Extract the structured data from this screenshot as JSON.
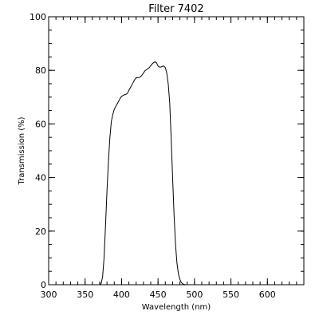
{
  "chart_data": {
    "type": "line",
    "title": "Filter 7402",
    "xlabel": "Wavelength (nm)",
    "ylabel": "Transmission (%)",
    "xlim": [
      300,
      650
    ],
    "ylim": [
      0,
      100
    ],
    "xticks": [
      300,
      350,
      400,
      450,
      500,
      550,
      600
    ],
    "yticks": [
      0,
      20,
      40,
      60,
      80,
      100
    ],
    "x_minor_step": 10,
    "y_minor_step": 5,
    "grid": false,
    "line_color": "#000000",
    "series": [
      {
        "x": [
          370,
          372,
          374,
          376,
          378,
          380,
          382,
          384,
          385,
          386,
          388,
          390,
          392,
          394,
          396,
          398,
          400,
          402,
          404,
          406,
          408,
          410,
          412,
          414,
          416,
          418,
          420,
          422,
          424,
          426,
          428,
          430,
          432,
          434,
          436,
          438,
          440,
          442,
          444,
          446,
          448,
          450,
          452,
          454,
          456,
          458,
          460,
          462,
          464,
          466,
          468,
          470,
          472,
          474,
          476,
          478,
          480,
          482,
          484,
          486,
          488,
          490
        ],
        "y": [
          0,
          0.5,
          3,
          10,
          22,
          35,
          46,
          55,
          58,
          61,
          63.5,
          65.5,
          66.5,
          67.5,
          68.5,
          69.5,
          70.3,
          70.6,
          70.9,
          71.0,
          71.4,
          72.5,
          73.5,
          74.5,
          75.5,
          76.5,
          77.2,
          77.3,
          77.3,
          77.6,
          78.2,
          79.0,
          79.8,
          80.2,
          80.6,
          81.0,
          81.7,
          82.4,
          82.9,
          83.2,
          82.8,
          81.6,
          81.2,
          81.2,
          81.5,
          81.6,
          81.0,
          79.0,
          75.0,
          68.0,
          55.0,
          40.0,
          26.0,
          15.0,
          8.0,
          4.0,
          2.0,
          0.8,
          0.3,
          0.1,
          0,
          0
        ]
      }
    ]
  }
}
